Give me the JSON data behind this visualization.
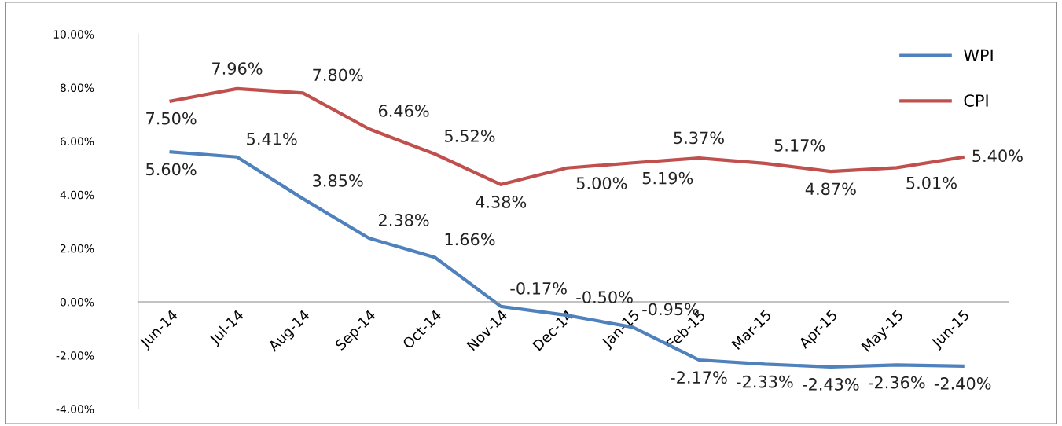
{
  "chart_data": {
    "type": "line",
    "categories": [
      "Jun-14",
      "Jul-14",
      "Aug-14",
      "Sep-14",
      "Oct-14",
      "Nov-14",
      "Dec-14",
      "Jan-15",
      "Feb-15",
      "Mar-15",
      "Apr-15",
      "May-15",
      "Jun-15"
    ],
    "series": [
      {
        "name": "WPI",
        "color": "#4f81bd",
        "values": [
          5.6,
          5.41,
          3.85,
          2.38,
          1.66,
          -0.17,
          -0.5,
          -0.95,
          -2.17,
          -2.33,
          -2.43,
          -2.36,
          -2.4
        ],
        "value_labels": [
          "5.60%",
          "5.41%",
          "3.85%",
          "2.38%",
          "1.66%",
          "-0.17%",
          "-0.50%",
          "-0.95%",
          "-2.17%",
          "-2.33%",
          "-2.43%",
          "-2.36%",
          "-2.40%"
        ]
      },
      {
        "name": "CPI",
        "color": "#c0504d",
        "values": [
          7.5,
          7.96,
          7.8,
          6.46,
          5.52,
          4.38,
          5.0,
          5.19,
          5.37,
          5.17,
          4.87,
          5.01,
          5.4
        ],
        "value_labels": [
          "7.50%",
          "7.96%",
          "7.80%",
          "6.46%",
          "5.52%",
          "4.38%",
          "5.00%",
          "5.19%",
          "5.37%",
          "5.17%",
          "4.87%",
          "5.01%",
          "5.40%"
        ]
      }
    ],
    "ylim": [
      -4,
      10
    ],
    "yticks": [
      {
        "value": -4,
        "label": "-4.00%"
      },
      {
        "value": -2,
        "label": "-2.00%"
      },
      {
        "value": 0,
        "label": "0.00%"
      },
      {
        "value": 2,
        "label": "2.00%"
      },
      {
        "value": 4,
        "label": "4.00%"
      },
      {
        "value": 6,
        "label": "6.00%"
      },
      {
        "value": 8,
        "label": "8.00%"
      },
      {
        "value": 10,
        "label": "10.00%"
      }
    ],
    "data_labels": true,
    "legend": "top right",
    "grid": false,
    "marker": "none",
    "line_style": "solid"
  }
}
